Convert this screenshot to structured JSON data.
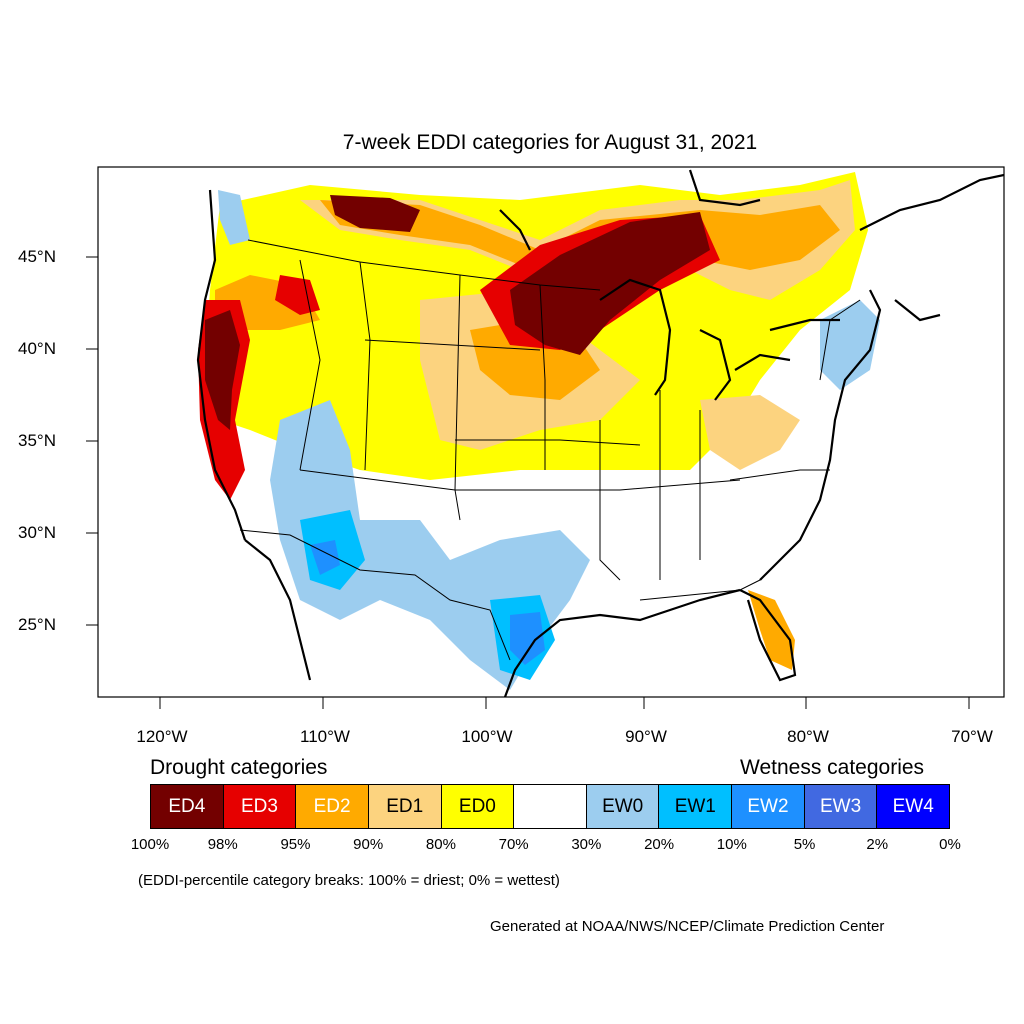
{
  "title": "7-week EDDI categories for August 31, 2021",
  "lat_labels": [
    "45°N",
    "40°N",
    "35°N",
    "30°N",
    "25°N"
  ],
  "lon_labels": [
    "120°W",
    "110°W",
    "100°W",
    "90°W",
    "80°W",
    "70°W"
  ],
  "legend": {
    "drought_heading": "Drought categories",
    "wetness_heading": "Wetness categories",
    "categories": [
      {
        "label": "ED4",
        "color": "#730000",
        "text_color": "#ffffff"
      },
      {
        "label": "ED3",
        "color": "#e60000",
        "text_color": "#ffffff"
      },
      {
        "label": "ED2",
        "color": "#ffaa00",
        "text_color": "#ffffff"
      },
      {
        "label": "ED1",
        "color": "#fcd37f",
        "text_color": "#000000"
      },
      {
        "label": "ED0",
        "color": "#ffff00",
        "text_color": "#000000"
      },
      {
        "label": "",
        "color": "#ffffff",
        "text_color": "#000000"
      },
      {
        "label": "EW0",
        "color": "#9ccdef",
        "text_color": "#000000"
      },
      {
        "label": "EW1",
        "color": "#00bfff",
        "text_color": "#000000"
      },
      {
        "label": "EW2",
        "color": "#1e90ff",
        "text_color": "#ffffff"
      },
      {
        "label": "EW3",
        "color": "#4169e1",
        "text_color": "#ffffff"
      },
      {
        "label": "EW4",
        "color": "#0000ff",
        "text_color": "#ffffff"
      }
    ],
    "breaks": [
      "100%",
      "98%",
      "95%",
      "90%",
      "80%",
      "70%",
      "30%",
      "20%",
      "10%",
      "5%",
      "2%",
      "0%"
    ]
  },
  "note": "(EDDI-percentile category breaks: 100% = driest; 0% = wettest)",
  "credit": "Generated at NOAA/NWS/NCEP/Climate Prediction Center"
}
